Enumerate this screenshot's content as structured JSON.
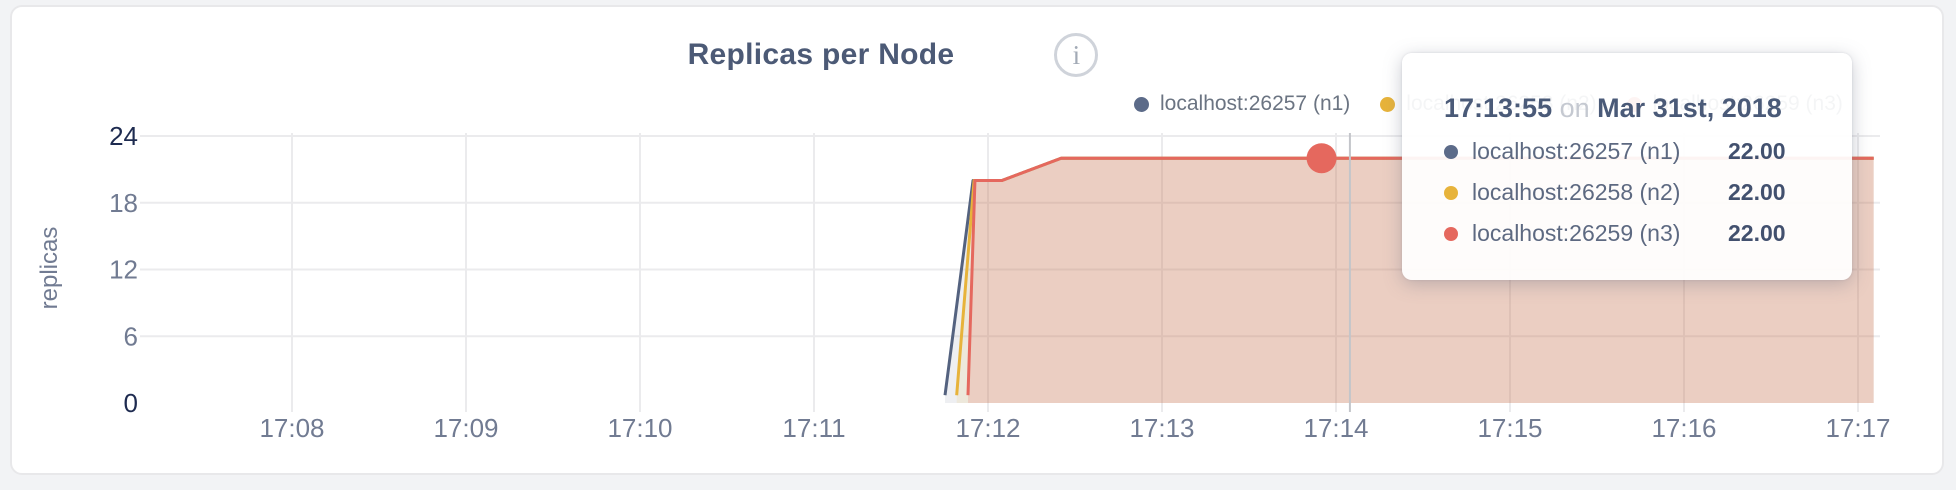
{
  "header": {
    "title": "Replicas per Node",
    "info_icon_glyph": "i"
  },
  "legend": {
    "items": [
      {
        "label": "localhost:26257 (n1)",
        "color": "#5c6b89"
      },
      {
        "label": "localhost:26258 (n2)",
        "color": "#e7b33b"
      },
      {
        "label": "localhost:26259 (n3)",
        "color": "#e5685e"
      }
    ]
  },
  "tooltip": {
    "time": "17:13:55",
    "conjunction": "on",
    "date": "Mar 31st, 2018",
    "rows": [
      {
        "label": "localhost:26257 (n1)",
        "value": "22.00",
        "color": "#5c6b89"
      },
      {
        "label": "localhost:26258 (n2)",
        "value": "22.00",
        "color": "#e7b33b"
      },
      {
        "label": "localhost:26259 (n3)",
        "value": "22.00",
        "color": "#e5685e"
      }
    ]
  },
  "chart_data": {
    "type": "area",
    "title": "Replicas per Node",
    "xlabel": "",
    "ylabel": "replicas",
    "x_tick_labels": [
      "17:08",
      "17:09",
      "17:10",
      "17:11",
      "17:12",
      "17:13",
      "17:14",
      "17:15",
      "17:16",
      "17:17"
    ],
    "y_ticks": [
      0,
      6,
      12,
      18,
      24
    ],
    "ylim": [
      0,
      24
    ],
    "grid": true,
    "legend_position": "top-right",
    "x_unit": "minutes after 17:08",
    "x_domain": [
      -0.87,
      9.09
    ],
    "series": [
      {
        "name": "localhost:26257 (n1)",
        "color": "#54627f",
        "fill": "rgba(84,98,127,0.10)",
        "points": [
          [
            3.753,
            0.7
          ],
          [
            3.914,
            20
          ],
          [
            4.08,
            20
          ],
          [
            4.42,
            22
          ],
          [
            9.09,
            22
          ]
        ]
      },
      {
        "name": "localhost:26258 (n2)",
        "color": "#e7b33b",
        "fill": "rgba(231,179,59,0.12)",
        "points": [
          [
            3.82,
            0.7
          ],
          [
            3.92,
            20
          ],
          [
            4.08,
            20
          ],
          [
            4.42,
            22
          ],
          [
            9.09,
            22
          ]
        ]
      },
      {
        "name": "localhost:26259 (n3)",
        "color": "#e5685e",
        "fill": "rgba(229,104,94,0.20)",
        "points": [
          [
            3.885,
            0.7
          ],
          [
            3.925,
            20
          ],
          [
            4.08,
            20
          ],
          [
            4.42,
            22
          ],
          [
            9.09,
            22
          ]
        ]
      }
    ],
    "highlight": {
      "series": "localhost:26259 (n3)",
      "time_label": "17:13:55",
      "t": 5.917,
      "value": 22
    },
    "crosshair_t": 6.08
  }
}
